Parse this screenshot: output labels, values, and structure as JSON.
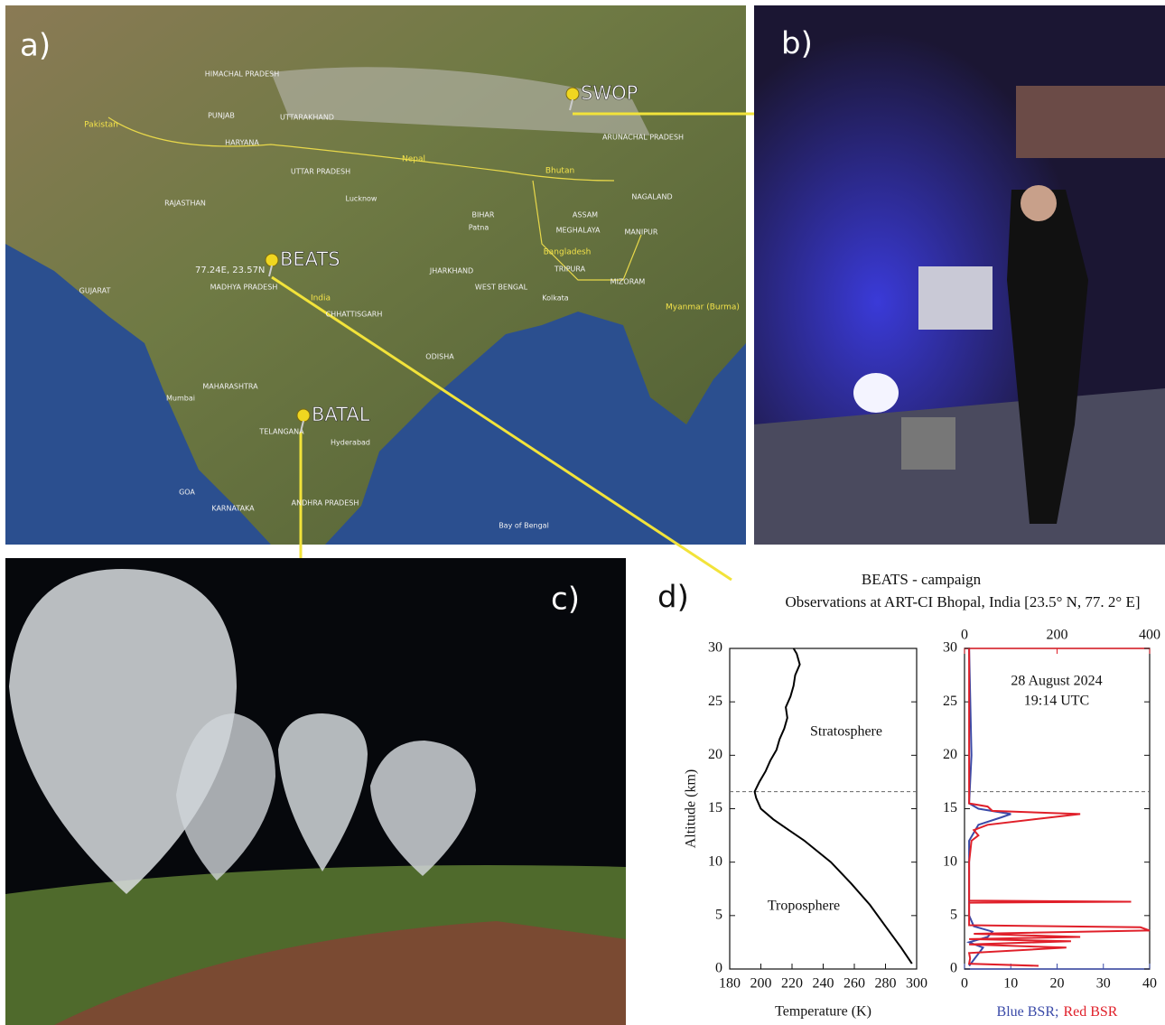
{
  "map": {
    "label": "a)",
    "pins": [
      "SWOP",
      "BEATS",
      "BATAL"
    ],
    "coordinate": "77.24E, 23.57N",
    "places": [
      "Pakistan",
      "Nepal",
      "Bhutan",
      "Bangladesh",
      "India",
      "Myanmar (Burma)",
      "Bay of Bengal",
      "HIMACHAL PRADESH",
      "PUNJAB",
      "HARYANA",
      "UTTARAKHAND",
      "UTTAR PRADESH",
      "RAJASTHAN",
      "MADHYA PRADESH",
      "GUJARAT",
      "MAHARASHTRA",
      "TELANGANA",
      "ANDHRA PRADESH",
      "KARNATAKA",
      "GOA",
      "ODISHA",
      "CHHATTISGARH",
      "JHARKHAND",
      "BIHAR",
      "WEST BENGAL",
      "ASSAM",
      "MEGHALAYA",
      "NAGALAND",
      "MANIPUR",
      "MIZORAM",
      "TRIPURA",
      "ARUNACHAL PRADESH",
      "Mumbai",
      "Lucknow",
      "Patna",
      "Kolkata",
      "Hyderabad"
    ]
  },
  "photo_b": {
    "label": "b)"
  },
  "photo_c": {
    "label": "c)"
  },
  "figure": {
    "label": "d)",
    "title": "BEATS - campaign",
    "subtitle": "Observations at ART-CI Bhopal, India [23.5° N, 77. 2° E]"
  },
  "chart_data": [
    {
      "type": "line",
      "xlabel": "Temperature (K)",
      "ylabel": "Altitude (km)",
      "xlim": [
        180,
        300
      ],
      "xticks": [
        180,
        200,
        220,
        240,
        260,
        280,
        300
      ],
      "ylim": [
        0,
        30
      ],
      "yticks": [
        0,
        5,
        10,
        15,
        20,
        25,
        30
      ],
      "hline": 16.6,
      "annotations": [
        "Stratosphere",
        "Troposphere"
      ],
      "annotation_color": "#f08a24",
      "series": [
        {
          "color": "#000000",
          "x": [
            297,
            290,
            280,
            270,
            258,
            245,
            228,
            218,
            208,
            200,
            197,
            196,
            199,
            203,
            206,
            210,
            212,
            215,
            217,
            216,
            219,
            221,
            222,
            225,
            223,
            221
          ],
          "values": [
            0.5,
            2,
            4,
            6,
            8,
            10,
            12,
            13,
            14,
            15,
            16,
            16.6,
            17.5,
            18.5,
            19.5,
            20.5,
            21.5,
            22.5,
            23.5,
            24.5,
            25.5,
            26.5,
            27.5,
            28.5,
            29.5,
            30
          ]
        }
      ]
    },
    {
      "type": "line",
      "xlabel": [
        "Blue BSR;",
        "Red BSR"
      ],
      "xlim": [
        0,
        40
      ],
      "xticks": [
        0,
        10,
        20,
        30,
        40
      ],
      "xtick_color": "#3a4aa8",
      "x2lim": [
        0,
        400
      ],
      "x2ticks": [
        0,
        200,
        400
      ],
      "x2tick_color": "#e0202a",
      "ylim": [
        0,
        30
      ],
      "yticks": [
        0,
        5,
        10,
        15,
        20,
        25,
        30
      ],
      "hline": 16.6,
      "annotations": [
        "28 August 2024",
        "19:14 UTC"
      ],
      "annotation_color": "#111111",
      "series": [
        {
          "color": "#3a4aa8",
          "x": [
            1,
            4,
            1,
            5,
            6,
            2,
            1,
            1,
            3,
            8,
            10,
            3,
            1,
            1.5,
            1
          ],
          "values": [
            0.3,
            2,
            2.5,
            3,
            3.5,
            4,
            5,
            12,
            13.5,
            14.2,
            14.5,
            15,
            15.5,
            20,
            30
          ]
        },
        {
          "color": "#e0202a",
          "x": [
            16,
            1,
            1.2,
            1,
            22,
            1,
            23,
            1,
            25,
            2,
            40,
            38,
            1,
            1,
            1,
            36,
            1,
            1,
            1.5,
            3,
            2,
            5,
            15,
            25,
            6,
            5,
            1,
            1,
            1,
            1
          ],
          "values": [
            0.3,
            0.5,
            1,
            1.5,
            2,
            2.3,
            2.6,
            2.8,
            3,
            3.3,
            3.6,
            3.9,
            4.1,
            5,
            6.2,
            6.3,
            6.4,
            10,
            12,
            12.5,
            13,
            13.5,
            14,
            14.5,
            14.8,
            15.2,
            15.5,
            20,
            25,
            30
          ]
        }
      ]
    }
  ]
}
